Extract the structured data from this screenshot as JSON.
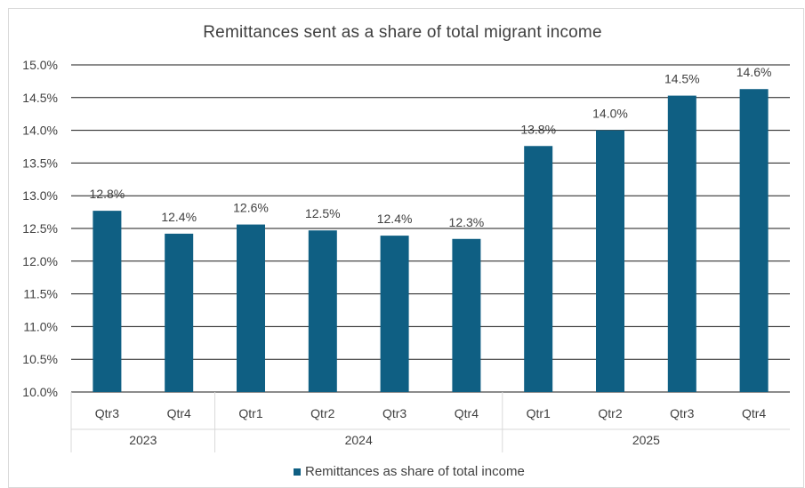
{
  "chart_data": {
    "type": "bar",
    "title": "Remittances sent as a share of total migrant income",
    "categories": [
      "Qtr3",
      "Qtr4",
      "Qtr1",
      "Qtr2",
      "Qtr3",
      "Qtr4",
      "Qtr1",
      "Qtr2",
      "Qtr3",
      "Qtr4"
    ],
    "groups": [
      {
        "label": "2023",
        "count": 2
      },
      {
        "label": "2024",
        "count": 4
      },
      {
        "label": "2025",
        "count": 4
      }
    ],
    "series": [
      {
        "name": "Remittances as share of total income",
        "values": [
          12.77,
          12.42,
          12.56,
          12.47,
          12.39,
          12.34,
          13.76,
          14.0,
          14.53,
          14.63
        ],
        "labels": [
          "12.8%",
          "12.4%",
          "12.6%",
          "12.5%",
          "12.4%",
          "12.3%",
          "13.8%",
          "14.0%",
          "14.5%",
          "14.6%"
        ],
        "color": "#0f5f83"
      }
    ],
    "ylim": [
      10.0,
      15.0
    ],
    "ytick_labels": [
      "10.0%",
      "10.5%",
      "11.0%",
      "11.5%",
      "12.0%",
      "12.5%",
      "13.0%",
      "13.5%",
      "14.0%",
      "14.5%",
      "15.0%"
    ],
    "xlabel": "",
    "ylabel": "",
    "grid": true,
    "legend_position": "bottom"
  }
}
